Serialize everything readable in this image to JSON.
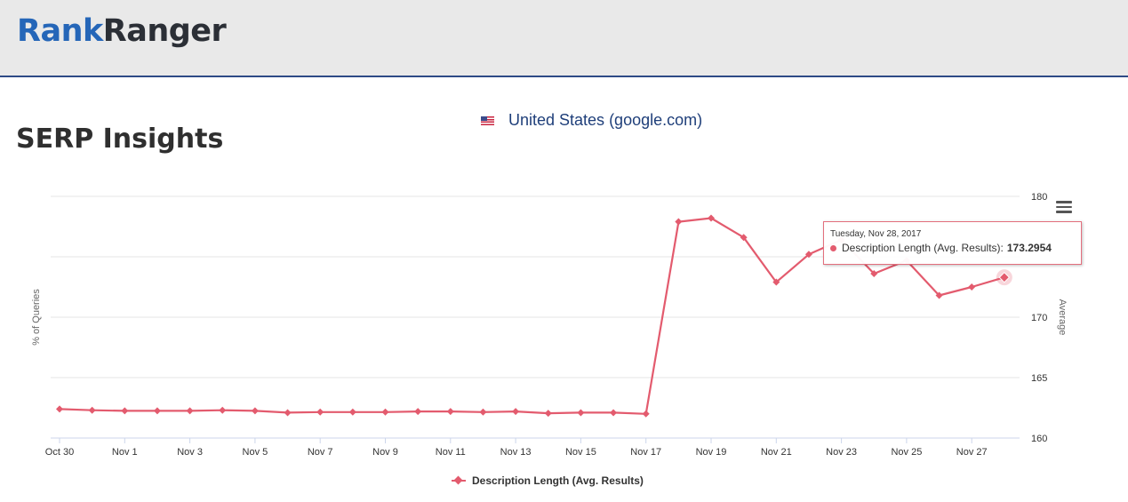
{
  "header": {
    "logo_rank": "Rank",
    "logo_ranger": "Ranger"
  },
  "page": {
    "title": "SERP Insights",
    "country": "United States (google.com)"
  },
  "tooltip": {
    "date": "Tuesday, Nov 28, 2017",
    "series": "Description Length (Avg. Results):",
    "value": "173.2954"
  },
  "colors": {
    "series": "#e35b6e",
    "accent": "#2566b8"
  },
  "chart_data": {
    "type": "line",
    "left_axis_title": "% of Queries",
    "right_axis_title": "Average",
    "x": [
      "Oct 30",
      "Oct 31",
      "Nov 1",
      "Nov 2",
      "Nov 3",
      "Nov 4",
      "Nov 5",
      "Nov 6",
      "Nov 7",
      "Nov 8",
      "Nov 9",
      "Nov 10",
      "Nov 11",
      "Nov 12",
      "Nov 13",
      "Nov 14",
      "Nov 15",
      "Nov 16",
      "Nov 17",
      "Nov 18",
      "Nov 19",
      "Nov 20",
      "Nov 21",
      "Nov 22",
      "Nov 23",
      "Nov 24",
      "Nov 25",
      "Nov 26",
      "Nov 27",
      "Nov 28"
    ],
    "x_tick_labels": [
      "Oct 30",
      "Nov 1",
      "Nov 3",
      "Nov 5",
      "Nov 7",
      "Nov 9",
      "Nov 11",
      "Nov 13",
      "Nov 15",
      "Nov 17",
      "Nov 19",
      "Nov 21",
      "Nov 23",
      "Nov 25",
      "Nov 27"
    ],
    "y_ticks": [
      160,
      165,
      170,
      175,
      180
    ],
    "y_tick_labels": [
      "160",
      "165",
      "170",
      "",
      "180"
    ],
    "ylim": [
      160,
      180
    ],
    "grid": true,
    "legend_position": "bottom-center",
    "series": [
      {
        "name": "Description Length (Avg. Results)",
        "values": [
          162.4,
          162.3,
          162.25,
          162.25,
          162.25,
          162.3,
          162.25,
          162.1,
          162.15,
          162.15,
          162.15,
          162.2,
          162.2,
          162.15,
          162.2,
          162.05,
          162.1,
          162.1,
          162.0,
          177.9,
          178.2,
          176.6,
          172.9,
          175.2,
          176.4,
          173.6,
          174.7,
          171.8,
          172.5,
          173.2954
        ]
      }
    ]
  }
}
